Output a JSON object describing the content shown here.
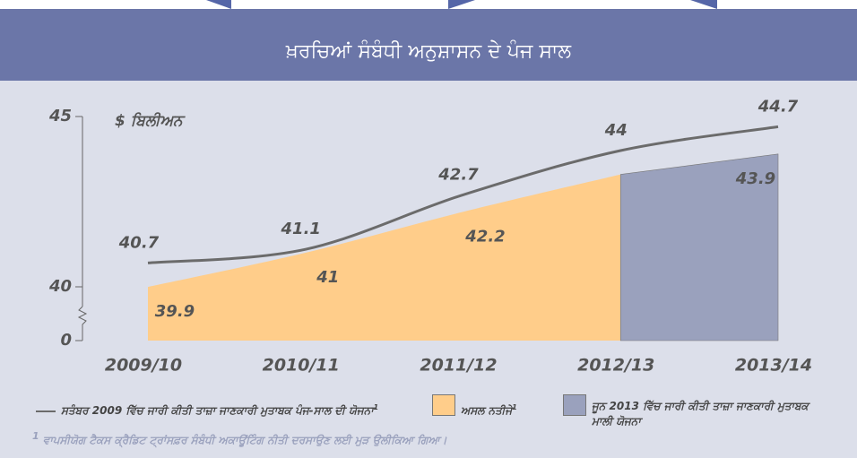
{
  "chart_data": {
    "type": "area",
    "title": "ਖ਼ਰਚਿਆਂ ਸੰਬੰਧੀ ਅਨੁਸ਼ਾਸਨ ਦੇ ਪੰਜ ਸਾਲ",
    "y_label": "$ ਬਿਲੀਅਨ",
    "categories": [
      "2009/10",
      "2010/11",
      "2011/12",
      "2012/13",
      "2013/14"
    ],
    "series": [
      {
        "name": "ਸਤੰਬਰ 2009 ਵਿੱਚ ਜਾਰੀ ਕੀਤੀ ਤਾਜ਼ਾ ਜਾਣਕਾਰੀ ਮੁਤਾਬਕ ਪੰਜ-ਸਾਲ ਦੀ ਯੋਜਨਾ",
        "color": "#6b6b6b",
        "kind": "line",
        "footnoted": true,
        "values": [
          40.7,
          41.1,
          42.7,
          44.0,
          44.7
        ]
      },
      {
        "name": "ਅਸਲ ਨਤੀਜੇ",
        "color": "#ffcd8a",
        "kind": "area",
        "footnoted": true,
        "values": [
          39.9,
          41.0,
          42.2,
          43.3,
          null
        ]
      },
      {
        "name": "ਜੂਨ 2013 ਵਿੱਚ ਜਾਰੀ ਕੀਤੀ ਤਾਜ਼ਾ ਜਾਣਕਾਰੀ ਮੁਤਾਬਕ ਮਾਲੀ ਯੋਜਨਾ",
        "color": "#9aa1bd",
        "kind": "area",
        "footnoted": false,
        "values": [
          null,
          null,
          null,
          null,
          43.9
        ]
      }
    ],
    "ylim": [
      0,
      45
    ],
    "yticks": [
      0,
      40,
      45
    ],
    "broken_axis": true,
    "footnote": {
      "marker": "1",
      "text": "ਵਾਪਸੀਯੋਗ ਟੈਕਸ ਕ੍ਰੈਡਿਟ ਟ੍ਰਾਂਸਫ਼ਰ ਸੰਬੰਧੀ ਅਕਾਊਂਟਿੰਗ ਨੀਤੀ ਦਰਸਾਉਣ ਲਈ ਮੁੜ ਉਲੀਕਿਆ ਗਿਆ।"
    }
  }
}
